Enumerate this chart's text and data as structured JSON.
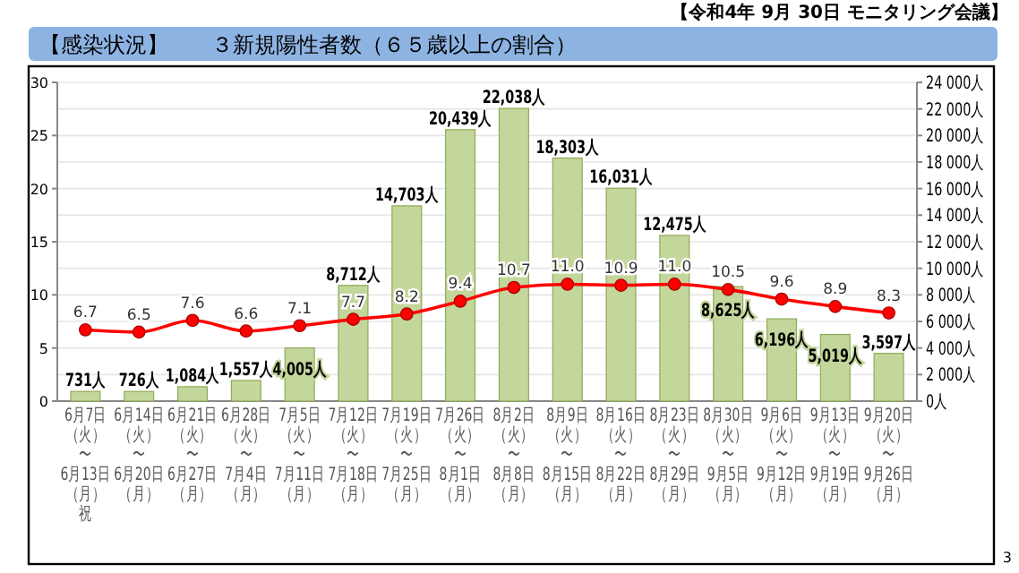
{
  "chart_data": {
    "type": "bar",
    "title": "【感染状況】　　３新規陽性者数（６５歳以上の割合）",
    "annotations": [
      "【令和4年 9月 30日 モニタリング会議】",
      "3"
    ],
    "categories": [
      "6月7日（火）〜6月13日（月）祝",
      "6月14日（火）〜6月20日（月）",
      "6月21日（火）〜6月27日（月）",
      "6月28日（火）〜7月4日（月）",
      "7月5日（火）〜7月11日（月）",
      "7月12日（火）〜7月18日（月）",
      "7月19日（火）〜7月25日（月）",
      "7月26日（火）〜8月1日（月）",
      "8月2日（火）〜8月8日（月）",
      "8月9日（火）〜8月15日（月）",
      "8月16日（火）〜8月22日（月）",
      "8月23日（火）〜8月29日（月）",
      "8月30日（火）〜9月5日（月）",
      "9月6日（火）〜9月12日（月）",
      "9月13日（火）〜9月19日（月）",
      "9月20日（火）〜9月26日（月）"
    ],
    "series": [
      {
        "axis": "y2",
        "color": "#c3d69b",
        "values": [
          731,
          726,
          1084,
          1557,
          4005,
          8712,
          14703,
          20439,
          22038,
          18303,
          16031,
          12475,
          8625,
          6196,
          5019,
          3597
        ],
        "value_labels": [
          "731人",
          "726人",
          "1,084人",
          "1,557人",
          "4,005人",
          "8,712人",
          "14,703人",
          "20,439人",
          "22,038人",
          "18,303人",
          "16,031人",
          "12,475人",
          "8,625人",
          "6,196人",
          "5,019人",
          "3,597人"
        ]
      },
      {
        "type": "line",
        "axis": "y",
        "color": "#ff0000",
        "marker": "circle",
        "values": [
          6.7,
          6.5,
          7.6,
          6.6,
          7.1,
          7.7,
          8.2,
          9.4,
          10.7,
          11.0,
          10.9,
          11.0,
          10.5,
          9.6,
          8.9,
          8.3
        ],
        "value_labels": [
          "6.7",
          "6.5",
          "7.6",
          "6.6",
          "7.1",
          "7.7",
          "8.2",
          "9.4",
          "10.7",
          "11.0",
          "10.9",
          "11.0",
          "10.5",
          "9.6",
          "8.9",
          "8.3"
        ]
      }
    ],
    "ylim": [
      0,
      30
    ],
    "yticks": [
      0,
      5,
      10,
      15,
      20,
      25,
      30
    ],
    "y2lim": [
      0,
      24000
    ],
    "y2ticks": [
      {
        "value": 0,
        "label": "0人"
      },
      {
        "value": 2000,
        "label": "2 000人"
      },
      {
        "value": 4000,
        "label": "4 000人"
      },
      {
        "value": 6000,
        "label": "6 000人"
      },
      {
        "value": 8000,
        "label": "8 000人"
      },
      {
        "value": 10000,
        "label": "10 000人"
      },
      {
        "value": 12000,
        "label": "12 000人"
      },
      {
        "value": 14000,
        "label": "14 000人"
      },
      {
        "value": 16000,
        "label": "16 000人"
      },
      {
        "value": 18000,
        "label": "18 000人"
      },
      {
        "value": 20000,
        "label": "20 000人"
      },
      {
        "value": 22000,
        "label": "22 000人"
      },
      {
        "value": 24000,
        "label": "24 000人"
      }
    ],
    "grid": true
  }
}
